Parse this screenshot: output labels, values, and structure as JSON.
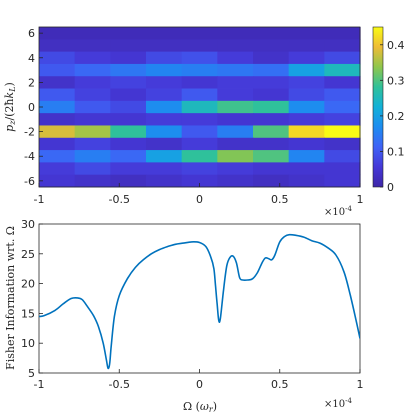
{
  "chart_data": [
    {
      "type": "heatmap",
      "title": "",
      "xlabel": "",
      "ylabel": "p_z/(2ħk_L)",
      "xlim": [
        -1,
        1
      ],
      "ylim": [
        -6.5,
        6.5
      ],
      "x_multiplier": "×10",
      "x_multiplier_exp": "-4",
      "x_ticks": [
        -1,
        -0.5,
        0,
        0.5,
        1
      ],
      "x_tick_labels": [
        "-1",
        "-0.5",
        "0",
        "0.5",
        "1"
      ],
      "y_ticks": [
        -6,
        -4,
        -2,
        0,
        2,
        4,
        6
      ],
      "y_tick_labels": [
        "-6",
        "-4",
        "-2",
        "0",
        "2",
        "4",
        "6"
      ],
      "colormap": "parula",
      "colorbar": {
        "range": [
          0,
          0.45
        ],
        "ticks": [
          0,
          0.1,
          0.2,
          0.3,
          0.4
        ],
        "tick_labels": [
          "0",
          "0.1",
          "0.2",
          "0.3",
          "0.4"
        ]
      },
      "rows": [
        {
          "p": 6,
          "values": [
            0.02,
            0.02,
            0.02,
            0.02,
            0.02,
            0.02,
            0.02,
            0.02,
            0.02
          ]
        },
        {
          "p": 5,
          "values": [
            0.03,
            0.03,
            0.03,
            0.03,
            0.03,
            0.03,
            0.03,
            0.03,
            0.03
          ]
        },
        {
          "p": 4,
          "values": [
            0.08,
            0.06,
            0.05,
            0.08,
            0.09,
            0.06,
            0.04,
            0.06,
            0.08
          ]
        },
        {
          "p": 3,
          "values": [
            0.1,
            0.12,
            0.14,
            0.16,
            0.15,
            0.14,
            0.13,
            0.2,
            0.25
          ]
        },
        {
          "p": 2,
          "values": [
            0.04,
            0.06,
            0.07,
            0.06,
            0.05,
            0.06,
            0.06,
            0.07,
            0.05
          ]
        },
        {
          "p": 1,
          "values": [
            0.1,
            0.07,
            0.05,
            0.07,
            0.1,
            0.06,
            0.05,
            0.08,
            0.1
          ]
        },
        {
          "p": 0,
          "values": [
            0.15,
            0.1,
            0.08,
            0.17,
            0.25,
            0.29,
            0.28,
            0.17,
            0.12
          ]
        },
        {
          "p": -1,
          "values": [
            0.04,
            0.05,
            0.05,
            0.06,
            0.06,
            0.05,
            0.05,
            0.06,
            0.07
          ]
        },
        {
          "p": -2,
          "values": [
            0.38,
            0.35,
            0.28,
            0.17,
            0.1,
            0.15,
            0.3,
            0.42,
            0.45
          ]
        },
        {
          "p": -3,
          "values": [
            0.05,
            0.07,
            0.05,
            0.04,
            0.06,
            0.04,
            0.04,
            0.05,
            0.04
          ]
        },
        {
          "p": -4,
          "values": [
            0.12,
            0.15,
            0.12,
            0.2,
            0.28,
            0.33,
            0.3,
            0.16,
            0.08
          ]
        },
        {
          "p": -5,
          "values": [
            0.06,
            0.08,
            0.06,
            0.06,
            0.07,
            0.06,
            0.05,
            0.05,
            0.05
          ]
        },
        {
          "p": -6,
          "values": [
            0.05,
            0.04,
            0.03,
            0.04,
            0.05,
            0.04,
            0.03,
            0.04,
            0.05
          ]
        }
      ]
    },
    {
      "type": "line",
      "title": "",
      "xlabel": "Ω (ω_r)",
      "ylabel": "Fisher Information wrt. Ω",
      "xlim": [
        -1,
        1
      ],
      "ylim": [
        5,
        30
      ],
      "x_multiplier": "×10",
      "x_multiplier_exp": "-4",
      "x_ticks": [
        -1,
        -0.5,
        0,
        0.5,
        1
      ],
      "x_tick_labels": [
        "-1",
        "-0.5",
        "0",
        "0.5",
        "1"
      ],
      "y_ticks": [
        5,
        10,
        15,
        20,
        25,
        30
      ],
      "y_tick_labels": [
        "5",
        "10",
        "15",
        "20",
        "25",
        "30"
      ],
      "color": "#0072BD",
      "x": [
        -1.0,
        -0.97,
        -0.9,
        -0.85,
        -0.8,
        -0.76,
        -0.73,
        -0.7,
        -0.66,
        -0.63,
        -0.6,
        -0.58,
        -0.57,
        -0.56,
        -0.55,
        -0.53,
        -0.5,
        -0.45,
        -0.4,
        -0.35,
        -0.3,
        -0.25,
        -0.2,
        -0.15,
        -0.1,
        -0.05,
        0.0,
        0.04,
        0.07,
        0.09,
        0.1,
        0.11,
        0.12,
        0.13,
        0.15,
        0.17,
        0.19,
        0.21,
        0.23,
        0.25,
        0.27,
        0.3,
        0.33,
        0.36,
        0.39,
        0.41,
        0.43,
        0.45,
        0.47,
        0.5,
        0.53,
        0.56,
        0.6,
        0.65,
        0.7,
        0.75,
        0.8,
        0.85,
        0.9,
        0.94,
        0.97,
        1.0
      ],
      "y": [
        14.5,
        14.6,
        15.5,
        16.6,
        17.5,
        17.6,
        17.3,
        16.2,
        14.6,
        12.8,
        10.0,
        7.2,
        5.8,
        6.5,
        9.5,
        14.5,
        18.0,
        20.8,
        22.7,
        24.0,
        25.0,
        25.7,
        26.2,
        26.6,
        26.8,
        27.0,
        26.9,
        26.2,
        24.5,
        22.5,
        19.5,
        16.5,
        13.8,
        14.2,
        19.0,
        23.0,
        24.4,
        24.6,
        23.5,
        21.0,
        20.6,
        20.6,
        20.8,
        21.8,
        23.5,
        24.3,
        24.2,
        24.0,
        24.8,
        27.0,
        27.9,
        28.2,
        28.1,
        27.8,
        27.2,
        26.8,
        26.0,
        24.8,
        22.0,
        18.0,
        14.5,
        10.8
      ]
    }
  ]
}
